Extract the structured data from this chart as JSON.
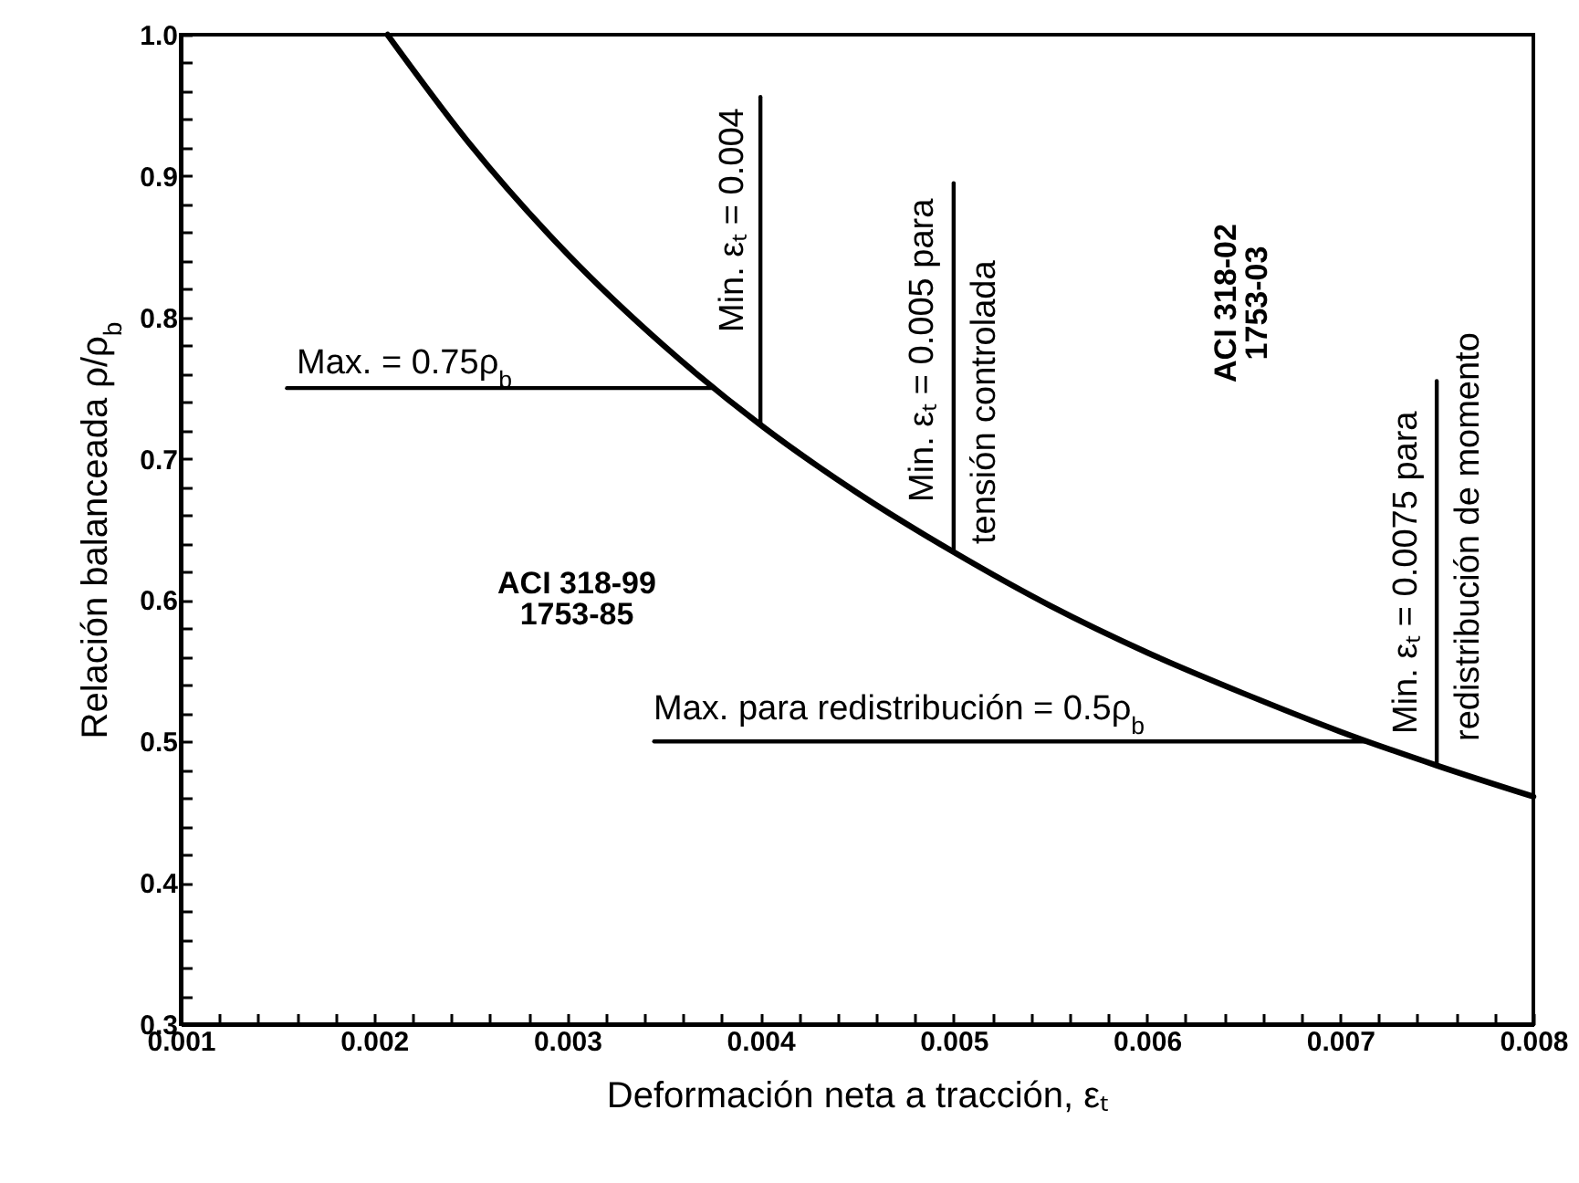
{
  "chart_data": {
    "type": "line",
    "xlabel": "Deformación neta a tracción, εₜ",
    "ylabel": "Relación balanceada  ρ/ρ$_{b}$",
    "xlim": [
      0.001,
      0.008
    ],
    "ylim": [
      0.3,
      1.0
    ],
    "xticks": [
      0.001,
      {
        "value": 0.0012,
        "label": null
      },
      {
        "value": 0.0014,
        "label": null
      },
      {
        "value": 0.0016,
        "label": null
      },
      {
        "value": 0.0018,
        "label": null
      },
      0.002,
      {
        "value": 0.0022,
        "label": null
      },
      {
        "value": 0.0024,
        "label": null
      },
      {
        "value": 0.0026,
        "label": null
      },
      {
        "value": 0.0028,
        "label": null
      },
      0.003,
      {
        "value": 0.0032,
        "label": null
      },
      {
        "value": 0.0034,
        "label": null
      },
      {
        "value": 0.0036,
        "label": null
      },
      {
        "value": 0.0038,
        "label": null
      },
      0.004,
      {
        "value": 0.0042,
        "label": null
      },
      {
        "value": 0.0044,
        "label": null
      },
      {
        "value": 0.0046,
        "label": null
      },
      {
        "value": 0.0048,
        "label": null
      },
      0.005,
      {
        "value": 0.0052,
        "label": null
      },
      {
        "value": 0.0054,
        "label": null
      },
      {
        "value": 0.0056,
        "label": null
      },
      {
        "value": 0.0058,
        "label": null
      },
      0.006,
      {
        "value": 0.0062,
        "label": null
      },
      {
        "value": 0.0064,
        "label": null
      },
      {
        "value": 0.0066,
        "label": null
      },
      {
        "value": 0.0068,
        "label": null
      },
      0.007,
      {
        "value": 0.0072,
        "label": null
      },
      {
        "value": 0.0074,
        "label": null
      },
      {
        "value": 0.0076,
        "label": null
      },
      {
        "value": 0.0078,
        "label": null
      },
      0.008
    ],
    "yticks": [
      0.3,
      {
        "value": 0.32,
        "label": null
      },
      {
        "value": 0.34,
        "label": null
      },
      {
        "value": 0.36,
        "label": null
      },
      {
        "value": 0.38,
        "label": null
      },
      0.4,
      {
        "value": 0.42,
        "label": null
      },
      {
        "value": 0.44,
        "label": null
      },
      {
        "value": 0.46,
        "label": null
      },
      {
        "value": 0.48,
        "label": null
      },
      0.5,
      {
        "value": 0.52,
        "label": null
      },
      {
        "value": 0.54,
        "label": null
      },
      {
        "value": 0.56,
        "label": null
      },
      {
        "value": 0.58,
        "label": null
      },
      0.6,
      {
        "value": 0.62,
        "label": null
      },
      {
        "value": 0.64,
        "label": null
      },
      {
        "value": 0.66,
        "label": null
      },
      {
        "value": 0.68,
        "label": null
      },
      0.7,
      {
        "value": 0.72,
        "label": null
      },
      {
        "value": 0.74,
        "label": null
      },
      {
        "value": 0.76,
        "label": null
      },
      {
        "value": 0.78,
        "label": null
      },
      0.8,
      {
        "value": 0.82,
        "label": null
      },
      {
        "value": 0.84,
        "label": null
      },
      {
        "value": 0.86,
        "label": null
      },
      {
        "value": 0.88,
        "label": null
      },
      0.9,
      {
        "value": 0.92,
        "label": null
      },
      {
        "value": 0.94,
        "label": null
      },
      {
        "value": 0.96,
        "label": null
      },
      {
        "value": 0.98,
        "label": null
      },
      {
        "value": 1.0,
        "label": "1.0"
      }
    ],
    "grid": false,
    "series": [
      {
        "color": "#000000",
        "x": [
          0.00207,
          0.0025,
          0.003,
          0.0035,
          0.004,
          0.0045,
          0.005,
          0.0055,
          0.006,
          0.0065,
          0.007,
          0.0075,
          0.008
        ],
        "values": [
          1.0,
          0.922,
          0.845,
          0.78,
          0.724,
          0.676,
          0.634,
          0.596,
          0.563,
          0.534,
          0.507,
          0.483,
          0.461
        ]
      },
      {
        "color": "#000000",
        "x": [
          0.00155,
          0.00376
        ],
        "values": [
          0.75,
          0.75
        ]
      },
      {
        "color": "#000000",
        "x": [
          0.004,
          0.004
        ],
        "values": [
          0.724,
          0.956
        ]
      },
      {
        "color": "#000000",
        "x": [
          0.005,
          0.005
        ],
        "values": [
          0.634,
          0.895
        ]
      },
      {
        "color": "#000000",
        "x": [
          0.00345,
          0.00714
        ],
        "values": [
          0.5,
          0.5
        ]
      },
      {
        "color": "#000000",
        "x": [
          0.0075,
          0.0075
        ],
        "values": [
          0.483,
          0.755
        ]
      }
    ],
    "annotations": [
      {
        "text": "Max. = 0.75ρ$_{b}$",
        "x": 0.0016,
        "y": 0.755
      },
      "Min. εₜ = 0.004",
      "Min. εₜ = 0.005 para",
      "tensión controlada",
      "ACI 318-02",
      "1753-03",
      "ACI 318-99",
      "1753-85",
      "Max. para redistribución = 0.5ρ$_{b}$",
      "Min. εₜ = 0.0075 para",
      "redistribución de momento"
    ]
  }
}
